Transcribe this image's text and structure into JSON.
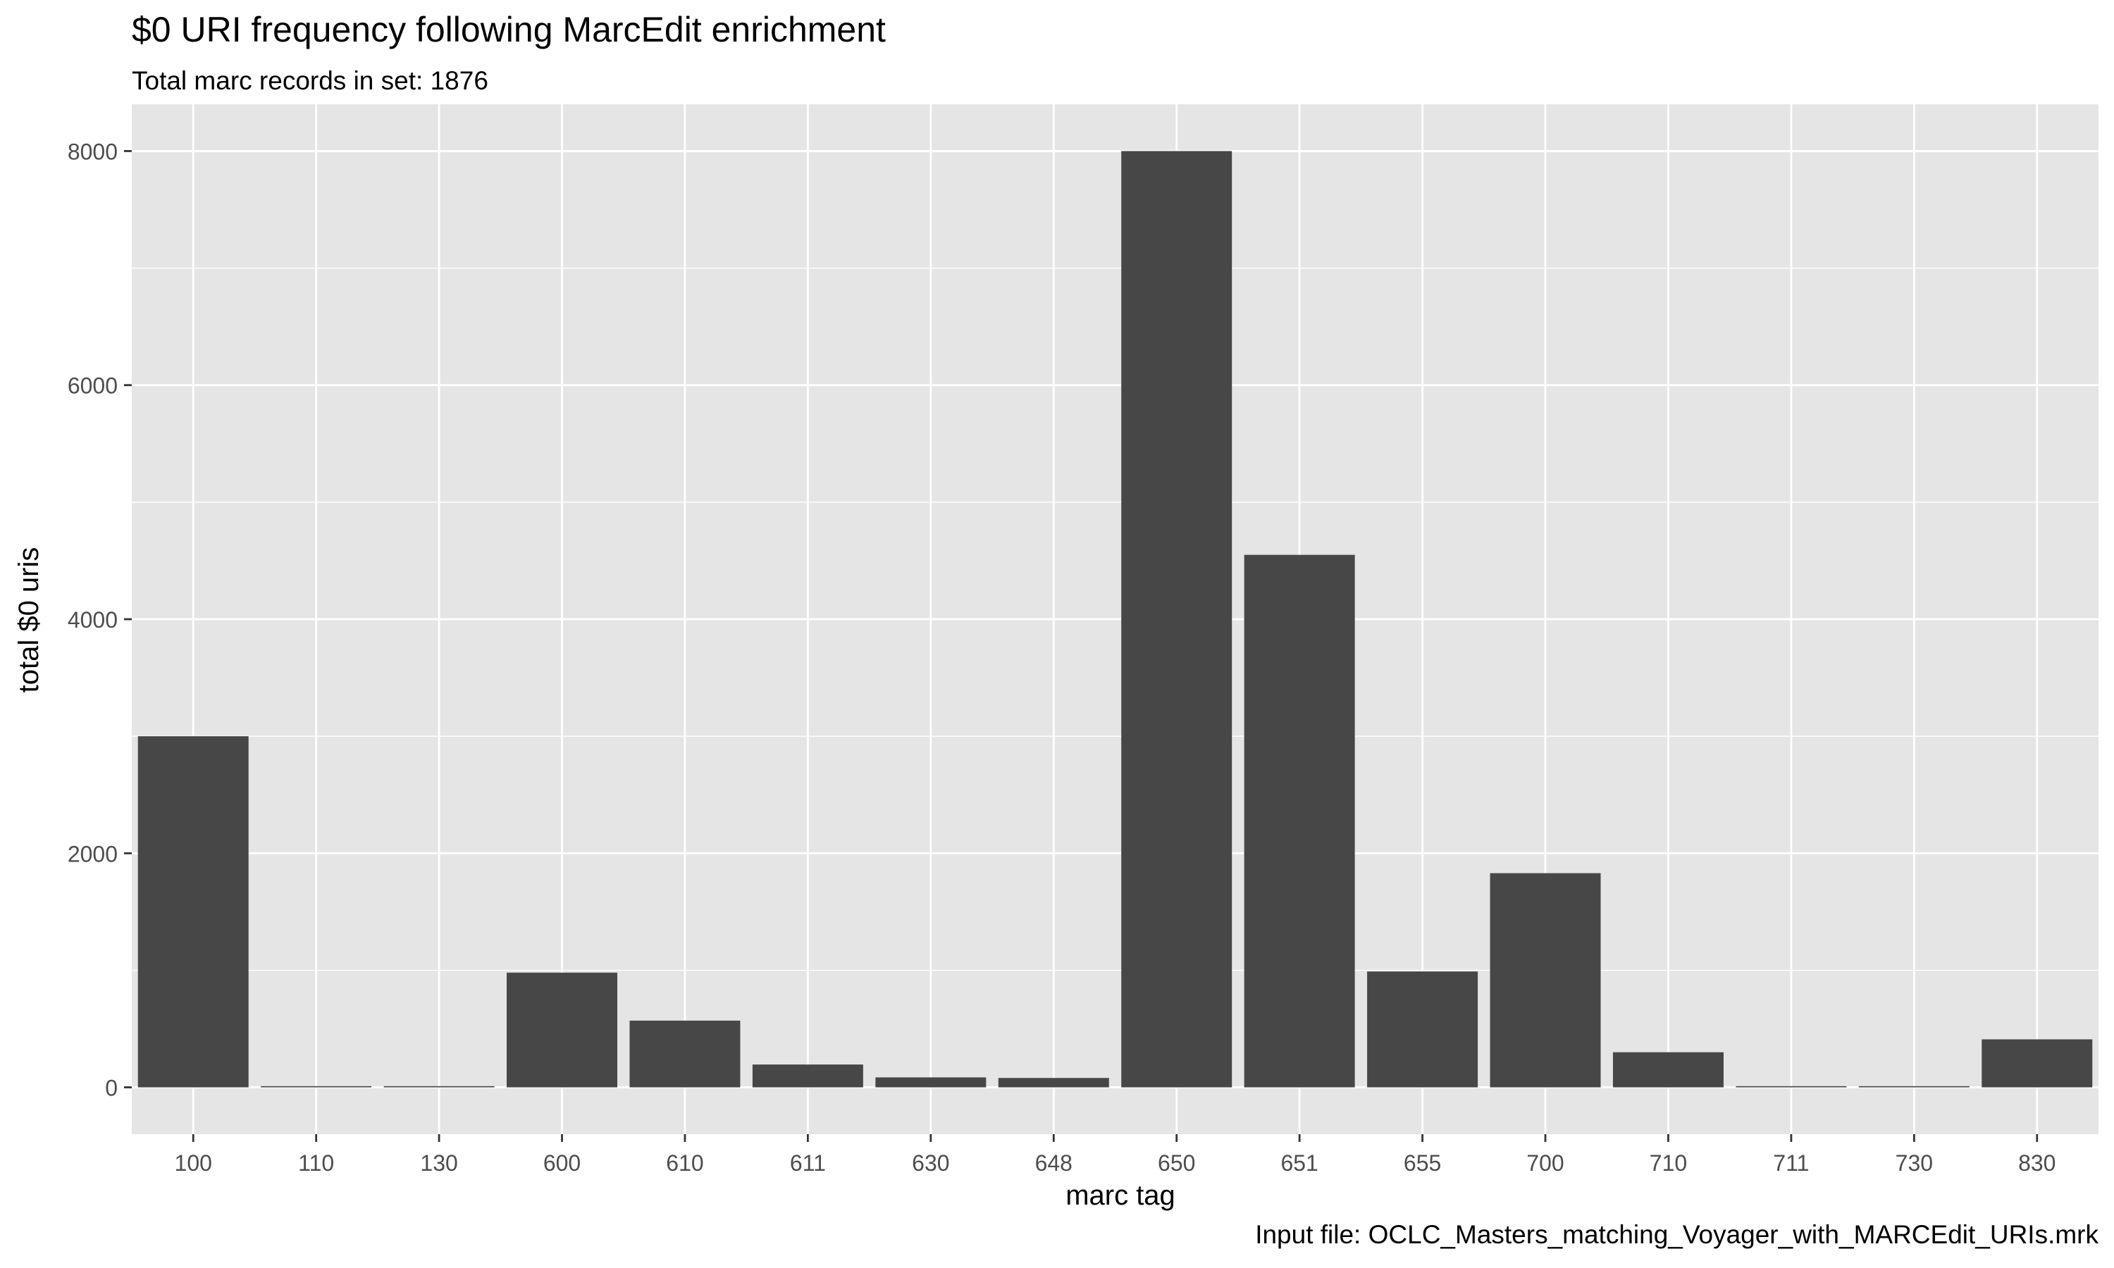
{
  "chart_data": {
    "type": "bar",
    "title": "$0 URI frequency following MarcEdit enrichment",
    "subtitle": "Total marc records in set:  1876",
    "caption": "Input file: OCLC_Masters_matching_Voyager_with_MARCEdit_URIs.mrk",
    "xlabel": "marc tag",
    "ylabel": "total $0 uris",
    "categories": [
      "100",
      "110",
      "130",
      "600",
      "610",
      "611",
      "630",
      "648",
      "650",
      "651",
      "655",
      "700",
      "710",
      "711",
      "730",
      "830"
    ],
    "values": [
      3000,
      10,
      10,
      980,
      570,
      195,
      85,
      80,
      8000,
      4550,
      990,
      1830,
      300,
      10,
      10,
      410
    ],
    "yticks": [
      0,
      2000,
      4000,
      6000,
      8000
    ],
    "ylim": [
      -400,
      8400
    ],
    "grid": true,
    "legend": "none",
    "colors": {
      "bar": "#474747",
      "panel": "#e5e5e5",
      "grid": "#ffffff",
      "tick": "#333333",
      "ticklabel": "#4d4d4d"
    }
  }
}
